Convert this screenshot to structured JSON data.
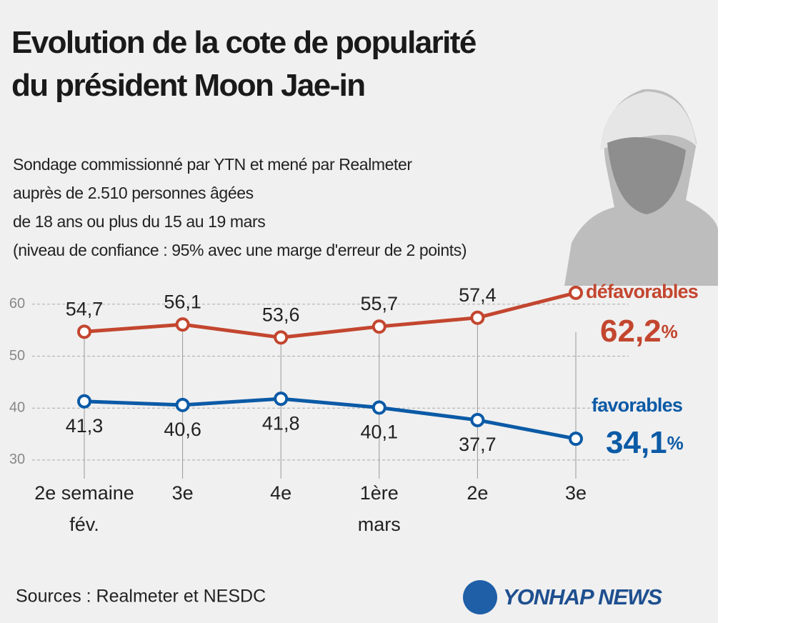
{
  "chart_data": {
    "type": "line",
    "title": "Evolution de la cote de popularité\ndu président Moon Jae-in",
    "subtitle": "Sondage commissionné par YTN et mené par Realmeter\nauprès de 2.510 personnes âgées\nde 18 ans ou plus du 15 au 19 mars\n(niveau de confiance : 95% avec une marge d'erreur de 2 points)",
    "categories": [
      "2e semaine\nfév.",
      "3e",
      "4e",
      "1ère\nmars",
      "2e",
      "3e"
    ],
    "series": [
      {
        "name": "défavorables",
        "color": "#c3462f",
        "values": [
          54.7,
          56.1,
          53.6,
          55.7,
          57.4,
          62.2
        ],
        "value_labels": [
          "54,7",
          "56,1",
          "53,6",
          "55,7",
          "57,4",
          "62,2"
        ]
      },
      {
        "name": "favorables",
        "color": "#0b5aa6",
        "values": [
          41.3,
          40.6,
          41.8,
          40.1,
          37.7,
          34.1
        ],
        "value_labels": [
          "41,3",
          "40,6",
          "41,8",
          "40,1",
          "37,7",
          "34,1"
        ]
      }
    ],
    "unit": "%",
    "ylim": [
      26,
      63
    ],
    "yticks": [
      30,
      40,
      50,
      60
    ],
    "grid": true,
    "source": "Sources : Realmeter et NESDC",
    "logo": "YONHAP NEWS"
  }
}
